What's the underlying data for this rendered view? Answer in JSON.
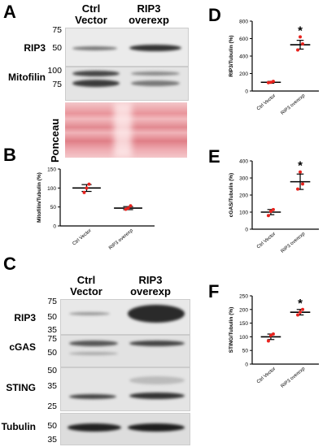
{
  "panels": {
    "A": {
      "letter": "A",
      "col1": [
        "Ctrl",
        "Vector"
      ],
      "col2": [
        "RIP3",
        "overexp"
      ],
      "rows": [
        {
          "label": "RIP3",
          "mw": [
            "75",
            "50"
          ]
        },
        {
          "label": "Mitofilin",
          "mw": [
            "100",
            "75"
          ]
        },
        {
          "label": "Ponceau",
          "mw": []
        }
      ]
    },
    "C": {
      "letter": "C",
      "col1": [
        "Ctrl",
        "Vector"
      ],
      "col2": [
        "RIP3",
        "overexp"
      ],
      "rows": [
        {
          "label": "RIP3",
          "mw": [
            "75",
            "50",
            "35"
          ]
        },
        {
          "label": "cGAS",
          "mw": [
            "75",
            "50"
          ]
        },
        {
          "label": "STING",
          "mw": [
            "50",
            "35",
            "25"
          ]
        },
        {
          "label": "Tubulin",
          "mw": [
            "50",
            "35"
          ]
        }
      ]
    },
    "B": {
      "letter": "B"
    },
    "D": {
      "letter": "D"
    },
    "E": {
      "letter": "E"
    },
    "F": {
      "letter": "F"
    }
  },
  "chart_data": [
    {
      "id": "B",
      "type": "scatter",
      "ylabel": "Mitofilin/Tubulin (%)",
      "categories": [
        "Ctrl Vector",
        "RIP3 overexp"
      ],
      "ylim": [
        0,
        150
      ],
      "yticks": [
        0,
        50,
        100,
        150
      ],
      "means": [
        100,
        47
      ],
      "sem": [
        9,
        4
      ],
      "points": [
        [
          88,
          110,
          100
        ],
        [
          44,
          53,
          47
        ]
      ],
      "significance": [
        "",
        ""
      ]
    },
    {
      "id": "D",
      "type": "scatter",
      "ylabel": "RIP3/Tubulin (%)",
      "categories": [
        "Ctrl Vector",
        "RIP3 overexp"
      ],
      "ylim": [
        0,
        800
      ],
      "yticks": [
        0,
        200,
        400,
        600,
        800
      ],
      "means": [
        100,
        530
      ],
      "sem": [
        10,
        50
      ],
      "points": [
        [
          95,
          110,
          100
        ],
        [
          470,
          540,
          620
        ]
      ],
      "significance": [
        "",
        "*"
      ]
    },
    {
      "id": "E",
      "type": "scatter",
      "ylabel": "cGAS/Tubulin (%)",
      "categories": [
        "Ctrl Vector",
        "RIP3 overexp"
      ],
      "ylim": [
        0,
        400
      ],
      "yticks": [
        0,
        100,
        200,
        300,
        400
      ],
      "means": [
        100,
        278
      ],
      "sem": [
        15,
        45
      ],
      "points": [
        [
          80,
          115,
          105
        ],
        [
          235,
          265,
          335
        ]
      ],
      "significance": [
        "",
        "*"
      ]
    },
    {
      "id": "F",
      "type": "scatter",
      "ylabel": "STING/Tubulin (%)",
      "categories": [
        "Ctrl Vector",
        "RIP3 overexp"
      ],
      "ylim": [
        0,
        250
      ],
      "yticks": [
        0,
        50,
        100,
        150,
        200,
        250
      ],
      "means": [
        100,
        190
      ],
      "sem": [
        10,
        10
      ],
      "points": [
        [
          85,
          110,
          105
        ],
        [
          180,
          200,
          190
        ]
      ],
      "significance": [
        "",
        "*"
      ]
    }
  ]
}
